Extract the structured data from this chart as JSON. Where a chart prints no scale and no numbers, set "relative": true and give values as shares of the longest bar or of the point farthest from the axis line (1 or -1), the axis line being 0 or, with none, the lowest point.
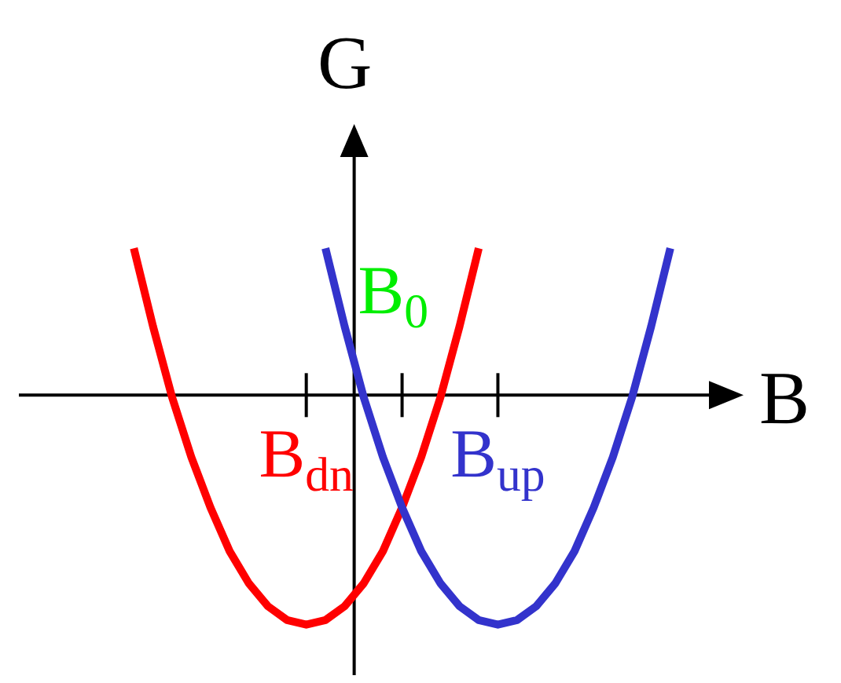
{
  "chart_data": {
    "type": "line",
    "relative": true,
    "xlabel": "B",
    "ylabel": "G",
    "categories": [
      null,
      null,
      null,
      null,
      null,
      null,
      null,
      null,
      null,
      null,
      null,
      null,
      null,
      null,
      null,
      null,
      null,
      null,
      null,
      null,
      null,
      null,
      null,
      null,
      null,
      null,
      null,
      null,
      null,
      null,
      null,
      null,
      null,
      null,
      null,
      null,
      null,
      null
    ],
    "annotations": [
      "B$_{dn}$",
      "B$_{0}$",
      "B$_{up}$"
    ],
    "marker": "none",
    "line_style": "solid",
    "series": [
      {
        "color": "#ff0000",
        "values": [
          null,
          null,
          null,
          null,
          null,
          null,
          0.64,
          0.3,
          -0.01,
          -0.27,
          -0.49,
          -0.68,
          -0.82,
          -0.92,
          -0.98,
          -1,
          -0.98,
          -0.92,
          -0.82,
          -0.68,
          -0.49,
          -0.27,
          -0.01,
          0.3,
          0.64,
          null,
          null,
          null,
          null,
          null,
          null,
          null,
          null,
          null,
          null,
          null,
          null,
          null
        ]
      },
      {
        "color": "#3333cc",
        "values": [
          null,
          null,
          null,
          null,
          null,
          null,
          null,
          null,
          null,
          null,
          null,
          null,
          null,
          null,
          null,
          null,
          0.64,
          0.3,
          -0.01,
          -0.27,
          -0.49,
          -0.68,
          -0.82,
          -0.92,
          -0.98,
          -1,
          -0.98,
          -0.92,
          -0.82,
          -0.68,
          -0.49,
          -0.27,
          -0.01,
          0.3,
          0.64,
          null,
          null,
          null
        ]
      }
    ]
  }
}
